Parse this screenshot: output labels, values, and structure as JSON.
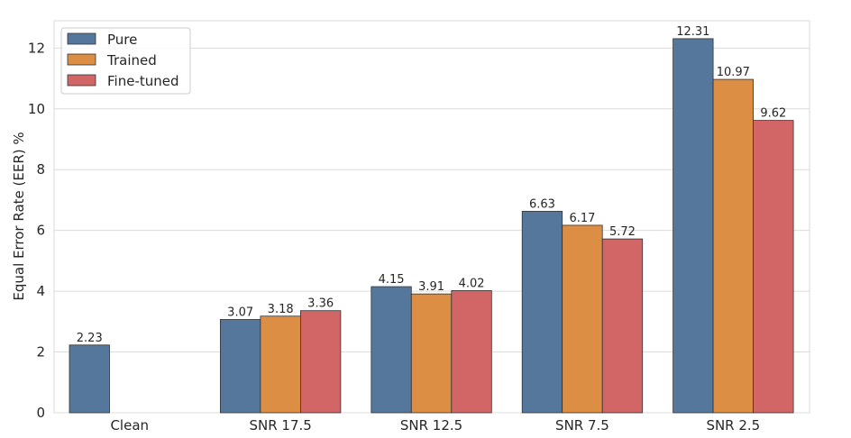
{
  "chart_data": {
    "type": "bar",
    "title": "",
    "xlabel": "",
    "ylabel": "Equal Error Rate (EER) %",
    "ylim": [
      0,
      12.9
    ],
    "yticks": [
      0,
      2,
      4,
      6,
      8,
      10,
      12
    ],
    "grid": "horizontal",
    "legend_position": "top-left",
    "categories": [
      "Clean",
      "SNR 17.5",
      "SNR 12.5",
      "SNR 7.5",
      "SNR 2.5"
    ],
    "series": [
      {
        "name": "Pure",
        "color": "#56779c",
        "values": [
          2.23,
          3.07,
          4.15,
          6.63,
          12.31
        ],
        "labels": [
          "2.23",
          "3.07",
          "4.15",
          "6.63",
          "12.31"
        ]
      },
      {
        "name": "Trained",
        "color": "#db8e44",
        "values": [
          null,
          3.18,
          3.91,
          6.17,
          10.97
        ],
        "labels": [
          "",
          "3.18",
          "3.91",
          "6.17",
          "10.97"
        ]
      },
      {
        "name": "Fine-tuned",
        "color": "#d26566",
        "values": [
          null,
          3.36,
          4.02,
          5.72,
          9.62
        ],
        "labels": [
          "",
          "3.36",
          "4.02",
          "5.72",
          "9.62"
        ]
      }
    ]
  }
}
